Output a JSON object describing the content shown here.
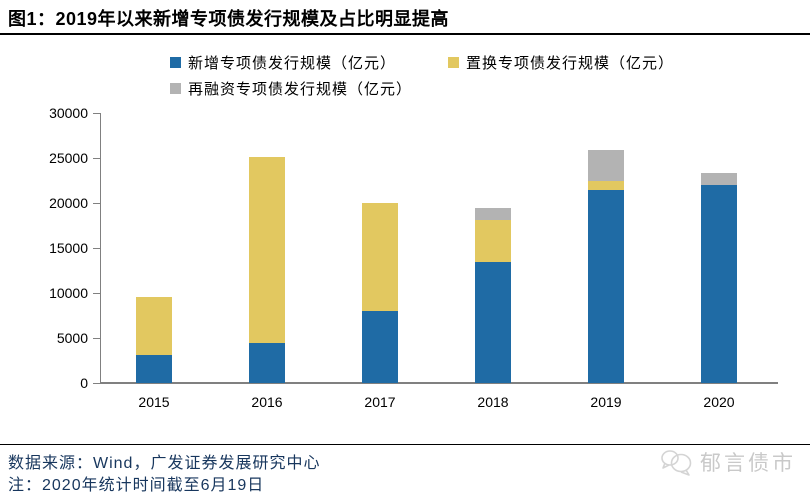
{
  "title": "图1：2019年以来新增专项债发行规模及占比明显提高",
  "chart_data": {
    "type": "bar",
    "stacked": true,
    "title": "图1：2019年以来新增专项债发行规模及占比明显提高",
    "categories": [
      "2015",
      "2016",
      "2017",
      "2018",
      "2019",
      "2020"
    ],
    "series": [
      {
        "name": "新增专项债发行规模（亿元）",
        "color": "#1F6BA5",
        "values": [
          3100,
          4400,
          8000,
          13500,
          21500,
          22000
        ]
      },
      {
        "name": "置换专项债发行规模（亿元）",
        "color": "#E2C860",
        "values": [
          6500,
          20700,
          12000,
          4600,
          900,
          0
        ]
      },
      {
        "name": "再融资专项债发行规模（亿元）",
        "color": "#B3B3B3",
        "values": [
          0,
          0,
          0,
          1300,
          3500,
          1300
        ]
      }
    ],
    "ylim": [
      0,
      30000
    ],
    "yticks": [
      0,
      5000,
      10000,
      15000,
      20000,
      25000,
      30000
    ],
    "xlabel": "",
    "ylabel": "",
    "grid": false,
    "legend_position": "top",
    "unit": "亿元"
  },
  "legend": [
    {
      "label": "新增专项债发行规模（亿元）",
      "color": "#1F6BA5"
    },
    {
      "label": "置换专项债发行规模（亿元）",
      "color": "#E2C860"
    },
    {
      "label": "再融资专项债发行规模（亿元）",
      "color": "#B3B3B3"
    }
  ],
  "footer": {
    "source": "数据来源：Wind，广发证券发展研究中心",
    "note": "注：2020年统计时间截至6月19日",
    "brand": "郁言债市"
  },
  "colors": {
    "bar_new": "#1F6BA5",
    "bar_swap": "#E2C860",
    "bar_refinance": "#B3B3B3",
    "axis": "#808080",
    "footer_text": "#17365D",
    "watermark": "#C9C9C9",
    "title_text": "#000000"
  }
}
